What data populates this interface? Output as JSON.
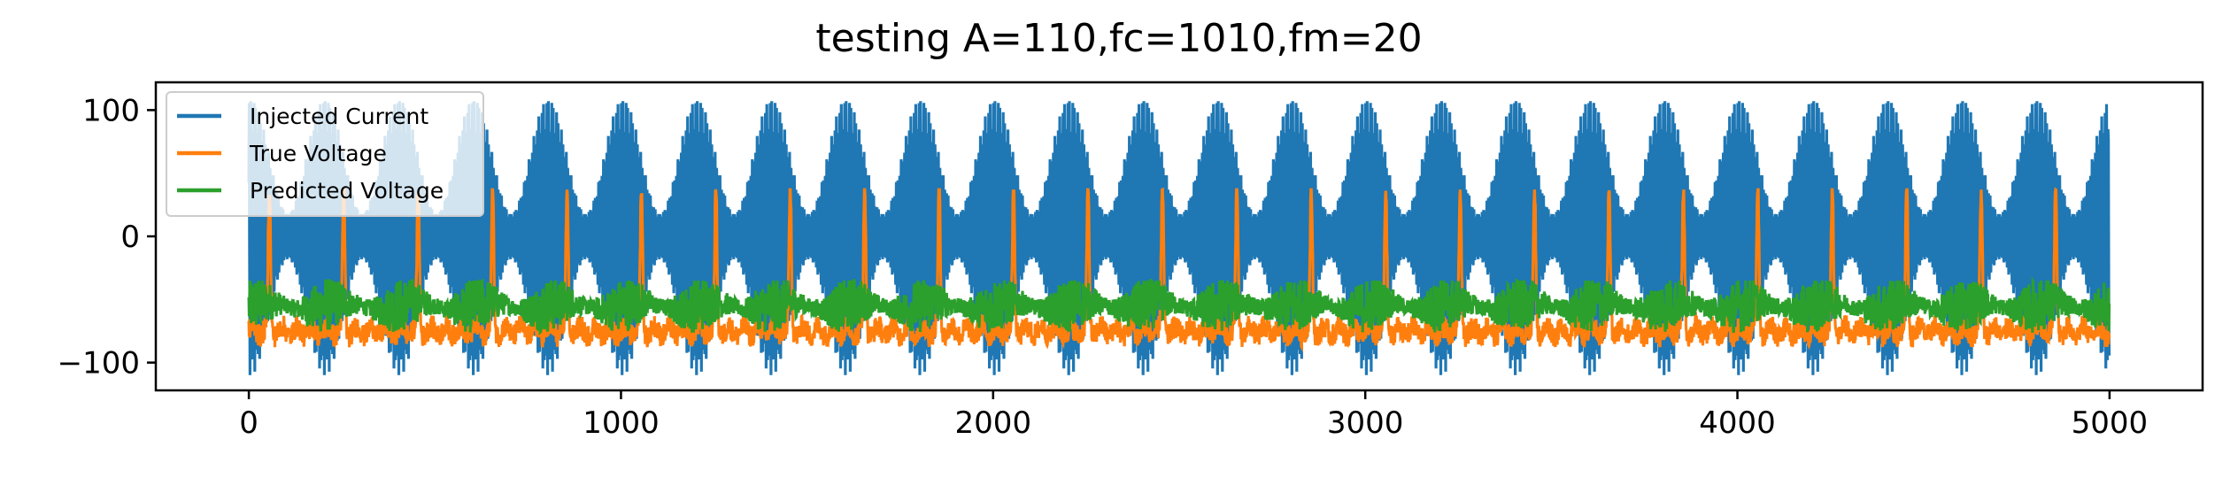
{
  "chart_data": {
    "type": "line",
    "title": "testing A=110,fc=1010,fm=20",
    "xlabel": "",
    "ylabel": "",
    "xlim": [
      -250,
      5250
    ],
    "ylim": [
      -122,
      122
    ],
    "xticks": [
      0,
      1000,
      2000,
      3000,
      4000,
      5000
    ],
    "xtick_labels": [
      "0",
      "1000",
      "2000",
      "3000",
      "4000",
      "5000"
    ],
    "yticks": [
      100,
      0,
      -100
    ],
    "ytick_labels": [
      "100",
      "0",
      "−100"
    ],
    "grid": false,
    "legend_position": "top-left",
    "n_points": 5000,
    "modulation_period": 200,
    "series": [
      {
        "name": "Injected Current",
        "color": "#1f77b4",
        "description": "AM signal, amplitude 110, oscillating between about -110 and 110",
        "envelope_min_amplitude": 18,
        "envelope_max_amplitude": 110
      },
      {
        "name": "True Voltage",
        "color": "#ff7f0e",
        "baseline": -75,
        "noise_range": [
          -88,
          -62
        ],
        "spike_peak": 37,
        "spike_period": 200,
        "spike_first_x": 55
      },
      {
        "name": "Predicted Voltage",
        "color": "#2ca02c",
        "range": [
          -80,
          -35
        ],
        "center": -55
      }
    ]
  }
}
